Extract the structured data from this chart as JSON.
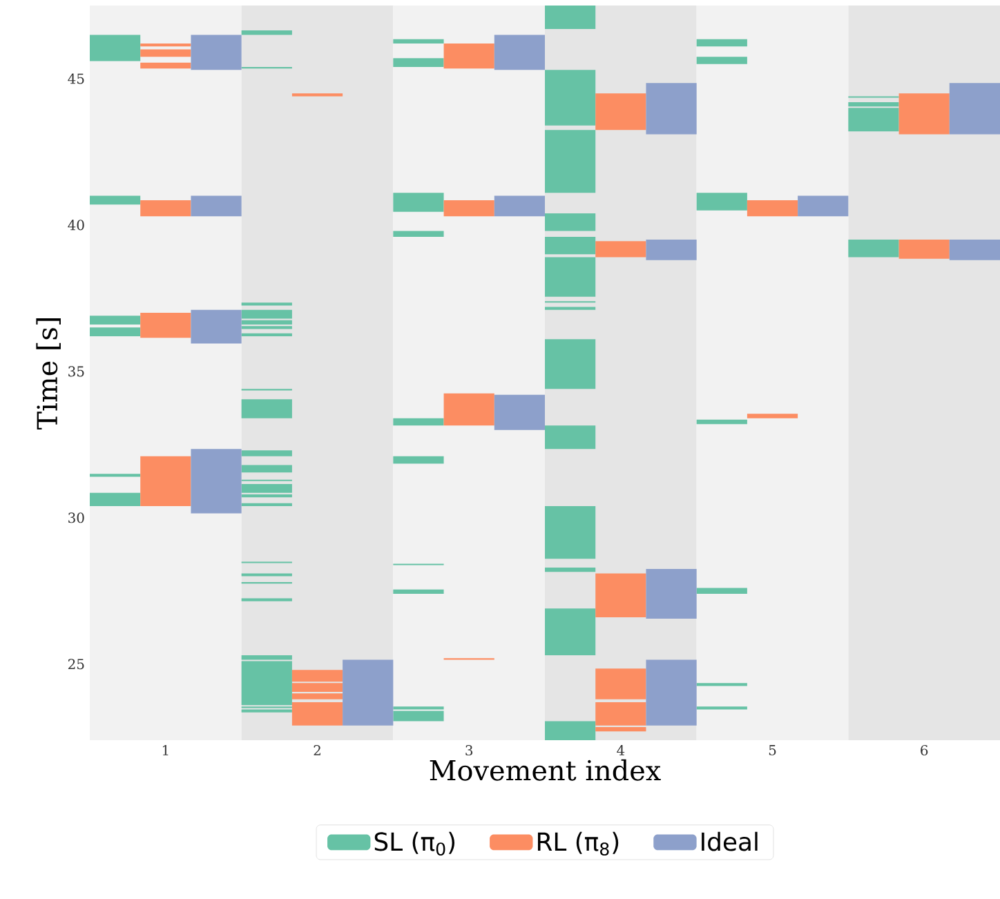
{
  "chart_data": {
    "type": "bar",
    "xlabel": "Movement index",
    "ylabel": "Time [s]",
    "categories": [
      "1",
      "2",
      "3",
      "4",
      "5",
      "6"
    ],
    "ylim": [
      22.4,
      47.5
    ],
    "yticks": [
      25,
      30,
      35,
      40,
      45
    ],
    "grid": false,
    "legend": "bottom",
    "series": [
      {
        "name": "SL (π$_{0}$)",
        "color": "#66c2a5",
        "base": [
          45.6,
          46.5,
          46.2,
          46.7,
          46.1,
          44.35
        ],
        "values": [
          0.9,
          0.15,
          0.15,
          0.8,
          0.25,
          0.05
        ]
      },
      {
        "color": "#66c2a5",
        "base": [
          40.7,
          45.35,
          45.4,
          43.4,
          45.5,
          44.05
        ],
        "values": [
          0.3,
          0.05,
          0.3,
          1.9,
          0.25,
          0.15
        ]
      },
      {
        "color": "#66c2a5",
        "base": [
          36.6,
          37.25,
          40.45,
          41.1,
          40.5,
          43.2
        ],
        "values": [
          0.3,
          0.1,
          0.65,
          2.15,
          0.6,
          0.8
        ]
      },
      {
        "color": "#66c2a5",
        "base": [
          36.2,
          36.8,
          39.6,
          39.8,
          33.2,
          38.9
        ],
        "values": [
          0.3,
          0.3,
          0.2,
          0.6,
          0.15,
          0.6
        ]
      },
      {
        "color": "#66c2a5",
        "base": [
          31.4,
          36.6,
          33.15,
          39.0,
          27.4,
          null
        ],
        "values": [
          0.1,
          0.15,
          0.25,
          0.6,
          0.2,
          null
        ]
      },
      {
        "color": "#66c2a5",
        "base": [
          30.4,
          36.45,
          31.85,
          37.55,
          24.25,
          null
        ],
        "values": [
          0.45,
          0.1,
          0.25,
          1.35,
          0.1,
          null
        ]
      },
      {
        "color": "#66c2a5",
        "base": [
          null,
          36.2,
          28.38,
          37.35,
          23.45,
          null
        ],
        "values": [
          null,
          0.1,
          0.05,
          0.05,
          0.1,
          null
        ]
      },
      {
        "color": "#66c2a5",
        "base": [
          null,
          34.35,
          27.4,
          37.1,
          null,
          null
        ],
        "values": [
          null,
          0.05,
          0.15,
          0.1,
          null,
          null
        ]
      },
      {
        "color": "#66c2a5",
        "base": [
          null,
          33.4,
          23.45,
          34.4,
          null,
          null
        ],
        "values": [
          null,
          0.65,
          0.1,
          1.7,
          null,
          null
        ]
      },
      {
        "color": "#66c2a5",
        "base": [
          null,
          32.1,
          23.05,
          32.35,
          null,
          null
        ],
        "values": [
          null,
          0.2,
          0.35,
          0.8,
          null,
          null
        ]
      },
      {
        "color": "#66c2a5",
        "base": [
          null,
          31.55,
          null,
          28.6,
          null,
          null
        ],
        "values": [
          null,
          0.25,
          null,
          1.8,
          null,
          null
        ]
      },
      {
        "color": "#66c2a5",
        "base": [
          null,
          31.25,
          null,
          28.15,
          null,
          null
        ],
        "values": [
          null,
          0.05,
          null,
          0.15,
          null,
          null
        ]
      },
      {
        "color": "#66c2a5",
        "base": [
          null,
          30.85,
          null,
          25.3,
          null,
          null
        ],
        "values": [
          null,
          0.3,
          null,
          1.6,
          null,
          null
        ]
      },
      {
        "color": "#66c2a5",
        "base": [
          null,
          30.7,
          null,
          22.4,
          null,
          null
        ],
        "values": [
          null,
          0.1,
          null,
          0.65,
          null,
          null
        ]
      },
      {
        "color": "#66c2a5",
        "base": [
          null,
          30.4,
          null,
          null,
          null,
          null
        ],
        "values": [
          null,
          0.1,
          null,
          null,
          null,
          null
        ]
      },
      {
        "color": "#66c2a5",
        "base": [
          null,
          28.45,
          null,
          null,
          null,
          null
        ],
        "values": [
          null,
          0.05,
          null,
          null,
          null,
          null
        ]
      },
      {
        "color": "#66c2a5",
        "base": [
          null,
          28.0,
          null,
          null,
          null,
          null
        ],
        "values": [
          null,
          0.1,
          null,
          null,
          null,
          null
        ]
      },
      {
        "color": "#66c2a5",
        "base": [
          null,
          27.75,
          null,
          null,
          null,
          null
        ],
        "values": [
          null,
          0.05,
          null,
          null,
          null,
          null
        ]
      },
      {
        "color": "#66c2a5",
        "base": [
          null,
          27.15,
          null,
          null,
          null,
          null
        ],
        "values": [
          null,
          0.1,
          null,
          null,
          null,
          null
        ]
      },
      {
        "color": "#66c2a5",
        "base": [
          null,
          25.15,
          null,
          null,
          null,
          null
        ],
        "values": [
          null,
          0.15,
          null,
          null,
          null,
          null
        ]
      },
      {
        "color": "#66c2a5",
        "base": [
          null,
          23.6,
          null,
          null,
          null,
          null
        ],
        "values": [
          null,
          1.5,
          null,
          null,
          null,
          null
        ]
      },
      {
        "color": "#66c2a5",
        "base": [
          null,
          23.5,
          null,
          null,
          null,
          null
        ],
        "values": [
          null,
          0.05,
          null,
          null,
          null,
          null
        ]
      },
      {
        "color": "#66c2a5",
        "base": [
          null,
          23.35,
          null,
          null,
          null,
          null
        ],
        "values": [
          null,
          0.1,
          null,
          null,
          null,
          null
        ]
      },
      {
        "name": "RL (π$_{8}$)",
        "color": "#fc8d62",
        "base": [
          46.1,
          44.4,
          45.35,
          43.25,
          40.3,
          43.1
        ],
        "values": [
          0.1,
          0.1,
          0.85,
          1.25,
          0.55,
          1.4
        ]
      },
      {
        "color": "#fc8d62",
        "base": [
          45.75,
          24.4,
          40.3,
          38.9,
          33.4,
          38.85
        ],
        "values": [
          0.25,
          0.4,
          0.55,
          0.55,
          0.15,
          0.65
        ]
      },
      {
        "color": "#fc8d62",
        "base": [
          45.35,
          24.05,
          33.15,
          26.6,
          null,
          null
        ],
        "values": [
          0.2,
          0.3,
          1.1,
          1.5,
          null,
          null
        ]
      },
      {
        "color": "#fc8d62",
        "base": [
          40.3,
          23.8,
          25.15,
          23.8,
          null,
          null
        ],
        "values": [
          0.55,
          0.2,
          0.05,
          1.05,
          null,
          null
        ]
      },
      {
        "color": "#fc8d62",
        "base": [
          36.15,
          22.9,
          null,
          22.9,
          null,
          null
        ],
        "values": [
          0.85,
          0.8,
          null,
          0.8,
          null,
          null
        ]
      },
      {
        "color": "#fc8d62",
        "base": [
          30.4,
          null,
          null,
          22.7,
          null,
          null
        ],
        "values": [
          1.7,
          null,
          null,
          0.15,
          null,
          null
        ]
      },
      {
        "name": "Ideal",
        "color": "#8da0cb",
        "base": [
          45.3,
          22.9,
          45.3,
          43.1,
          40.3,
          43.1
        ],
        "values": [
          1.2,
          2.25,
          1.2,
          1.75,
          0.7,
          1.75
        ]
      },
      {
        "color": "#8da0cb",
        "base": [
          40.3,
          null,
          40.3,
          38.8,
          null,
          38.8
        ],
        "values": [
          0.7,
          null,
          0.7,
          0.7,
          null,
          0.7
        ]
      },
      {
        "color": "#8da0cb",
        "base": [
          35.95,
          null,
          33.0,
          26.55,
          null,
          null
        ],
        "values": [
          1.15,
          null,
          1.2,
          1.7,
          null,
          null
        ]
      },
      {
        "color": "#8da0cb",
        "base": [
          30.15,
          null,
          null,
          22.9,
          null,
          null
        ],
        "values": [
          2.2,
          null,
          null,
          2.25,
          null,
          null
        ]
      }
    ]
  }
}
